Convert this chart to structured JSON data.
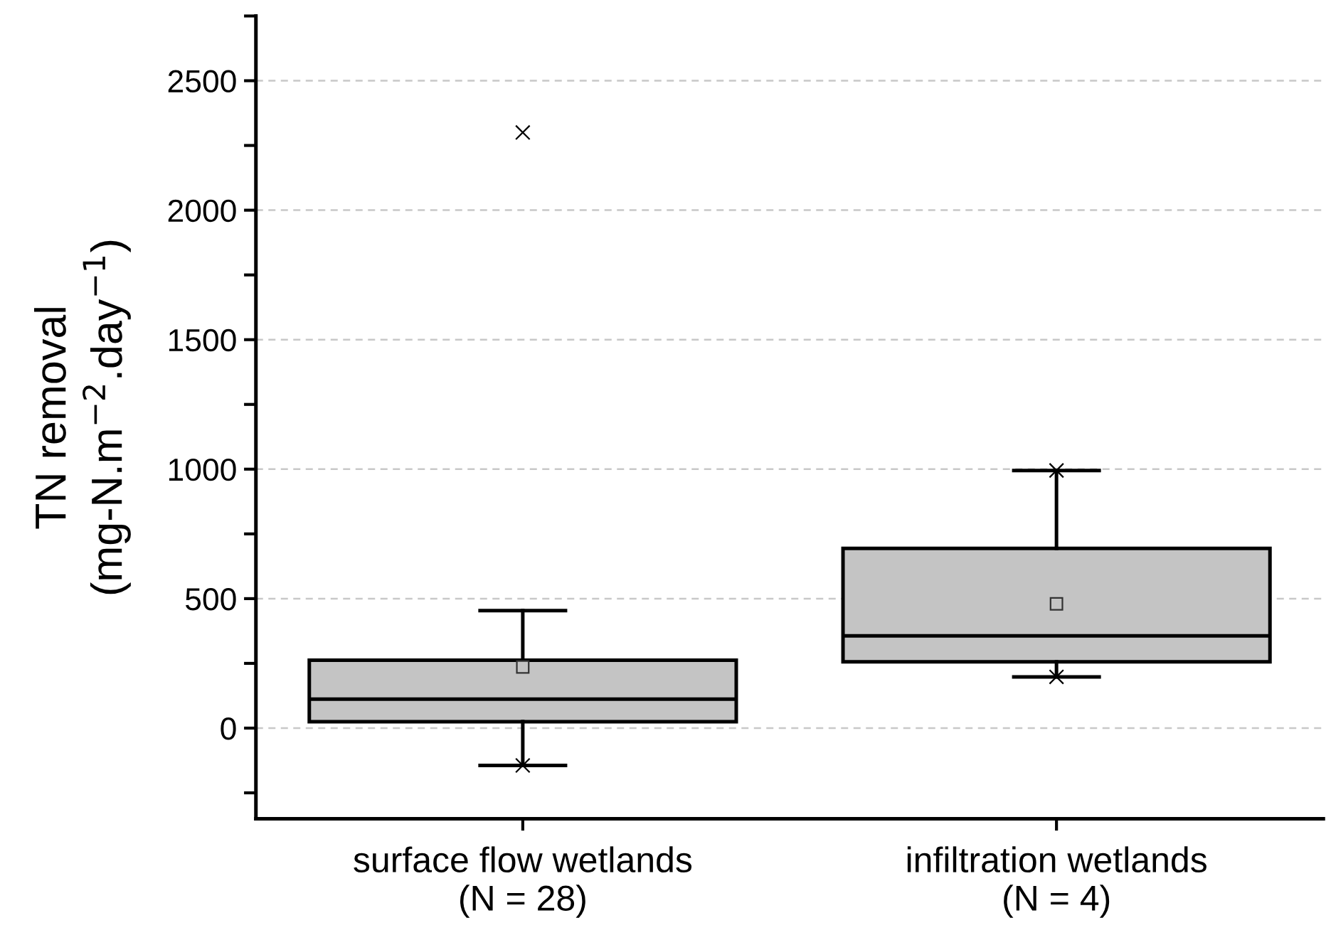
{
  "chart_data": {
    "type": "box",
    "categories": [
      "surface flow wetlands\n(N = 28)",
      "infiltration wetlands\n(N = 4)"
    ],
    "ylabel": "TN removal\n(mg-N.m$^{−2}$.day$^{−1}$)",
    "boxes": [
      {
        "low": -144,
        "q1": 25,
        "median": 112,
        "q3": 262,
        "high": 454,
        "mean": 236,
        "outliers": [
          -144,
          2300
        ]
      },
      {
        "low": 198,
        "q1": 256,
        "median": 356,
        "q3": 694,
        "high": 995,
        "mean": 480,
        "outliers": [
          198,
          995
        ]
      }
    ],
    "color": "#c4c4c4",
    "ylim": [
      -350,
      2750
    ],
    "yticks": [
      {
        "value": -250,
        "label": null
      },
      0,
      {
        "value": 250,
        "label": null
      },
      500,
      {
        "value": 750,
        "label": null
      },
      1000,
      {
        "value": 1250,
        "label": null
      },
      1500,
      {
        "value": 1750,
        "label": null
      },
      2000,
      {
        "value": 2250,
        "label": null
      },
      2500,
      {
        "value": 2750,
        "label": null
      }
    ],
    "grid": "y"
  }
}
